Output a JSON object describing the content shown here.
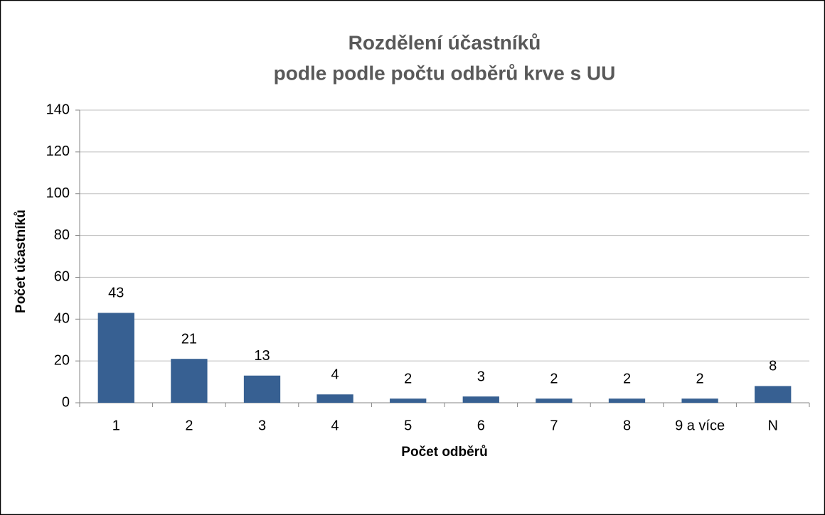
{
  "chart_data": {
    "type": "bar",
    "title": [
      "Rozdělení účastníků",
      "podle podle počtu odběrů krve s UU"
    ],
    "x_label": "Počet odběrů",
    "y_label": "Počet účastníků",
    "categories": [
      "1",
      "2",
      "3",
      "4",
      "5",
      "6",
      "7",
      "8",
      "9 a více",
      "N"
    ],
    "values": [
      43,
      21,
      13,
      4,
      2,
      3,
      2,
      2,
      2,
      8
    ],
    "color": "#376092",
    "ylim": [
      0,
      140
    ],
    "yticks": [
      0,
      20,
      40,
      60,
      80,
      100,
      120,
      140
    ],
    "grid": true
  }
}
